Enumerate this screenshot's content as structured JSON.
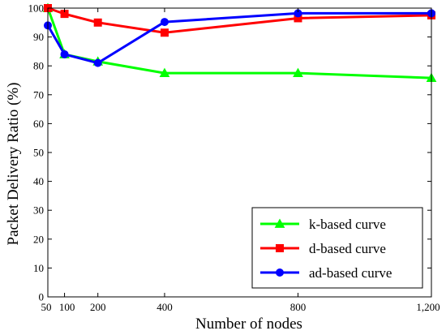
{
  "chart_data": {
    "type": "line",
    "title": "",
    "xlabel": "Number of nodes",
    "ylabel": "Packet Delivery Ratio (%)",
    "xlim": [
      50,
      1200
    ],
    "ylim": [
      0,
      100
    ],
    "x_ticks": [
      50,
      100,
      200,
      400,
      800,
      1200
    ],
    "x_tick_labels": [
      "50",
      "100",
      "200",
      "400",
      "800",
      "1,200"
    ],
    "y_ticks": [
      0,
      10,
      20,
      30,
      40,
      50,
      60,
      70,
      80,
      90,
      100
    ],
    "y_tick_labels": [
      "0",
      "10",
      "20",
      "30",
      "40",
      "50",
      "60",
      "70",
      "80",
      "90",
      "100"
    ],
    "grid": false,
    "legend_position": "bottom-right",
    "x": [
      50,
      100,
      200,
      400,
      800,
      1200
    ],
    "series": [
      {
        "name": "k-based curve",
        "color": "#00ff00",
        "marker": "triangle",
        "values": [
          100,
          84,
          81.5,
          77.5,
          77.5,
          75.8
        ]
      },
      {
        "name": "d-based curve",
        "color": "#ff0000",
        "marker": "square",
        "values": [
          100,
          98,
          95,
          91.5,
          96.5,
          97.5
        ]
      },
      {
        "name": "ad-based curve",
        "color": "#0000ff",
        "marker": "circle",
        "values": [
          94,
          84,
          81,
          95.2,
          98.2,
          98.2
        ]
      }
    ]
  }
}
